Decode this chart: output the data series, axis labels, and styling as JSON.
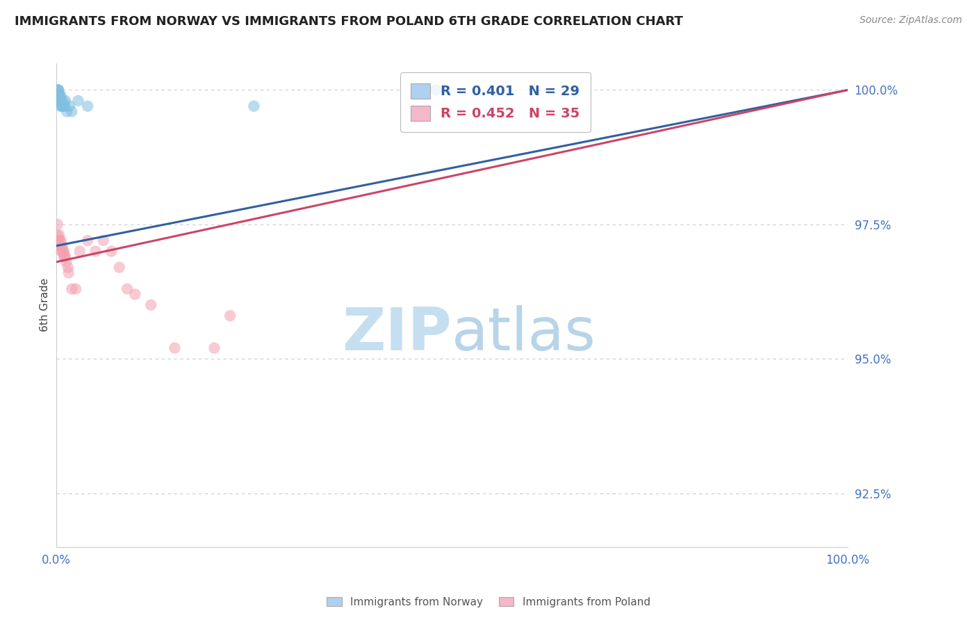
{
  "title": "IMMIGRANTS FROM NORWAY VS IMMIGRANTS FROM POLAND 6TH GRADE CORRELATION CHART",
  "source": "Source: ZipAtlas.com",
  "ylabel": "6th Grade",
  "xlim": [
    0.0,
    1.0
  ],
  "ylim": [
    0.915,
    1.005
  ],
  "yticks": [
    0.925,
    0.95,
    0.975,
    1.0
  ],
  "ytick_labels": [
    "92.5%",
    "95.0%",
    "97.5%",
    "100.0%"
  ],
  "norway_R": 0.401,
  "norway_N": 29,
  "poland_R": 0.452,
  "poland_N": 35,
  "norway_color": "#7fbfdf",
  "poland_color": "#f4a0b0",
  "norway_line_color": "#3060a0",
  "poland_line_color": "#cc4466",
  "norway_x": [
    0.002,
    0.003,
    0.003,
    0.003,
    0.003,
    0.003,
    0.003,
    0.004,
    0.004,
    0.004,
    0.005,
    0.005,
    0.005,
    0.006,
    0.006,
    0.007,
    0.007,
    0.008,
    0.009,
    0.01,
    0.011,
    0.012,
    0.014,
    0.017,
    0.02,
    0.028,
    0.04,
    0.25,
    0.48
  ],
  "norway_y": [
    1.0,
    1.0,
    1.0,
    1.0,
    0.999,
    0.999,
    0.999,
    0.999,
    0.998,
    0.998,
    0.999,
    0.998,
    0.998,
    0.999,
    0.997,
    0.998,
    0.997,
    0.997,
    0.998,
    0.997,
    0.997,
    0.998,
    0.996,
    0.997,
    0.996,
    0.998,
    0.997,
    0.997,
    1.0
  ],
  "poland_x": [
    0.002,
    0.002,
    0.003,
    0.003,
    0.004,
    0.004,
    0.005,
    0.005,
    0.006,
    0.007,
    0.007,
    0.008,
    0.008,
    0.009,
    0.01,
    0.01,
    0.011,
    0.012,
    0.013,
    0.015,
    0.016,
    0.02,
    0.025,
    0.03,
    0.04,
    0.05,
    0.06,
    0.07,
    0.08,
    0.09,
    0.1,
    0.12,
    0.15,
    0.2,
    0.22
  ],
  "poland_y": [
    0.975,
    0.973,
    0.972,
    0.972,
    0.973,
    0.971,
    0.972,
    0.971,
    0.972,
    0.971,
    0.97,
    0.97,
    0.971,
    0.97,
    0.97,
    0.969,
    0.969,
    0.969,
    0.968,
    0.967,
    0.966,
    0.963,
    0.963,
    0.97,
    0.972,
    0.97,
    0.972,
    0.97,
    0.967,
    0.963,
    0.962,
    0.96,
    0.952,
    0.952,
    0.958
  ],
  "watermark_zip_color": "#c5dff0",
  "watermark_atlas_color": "#b8d4e8",
  "background_color": "#ffffff",
  "grid_color": "#cccccc",
  "tick_color": "#4472c4",
  "title_color": "#222222",
  "title_fontsize": 13,
  "legend_box_color_norway": "#b0d0f0",
  "legend_box_color_poland": "#f4b8c8"
}
